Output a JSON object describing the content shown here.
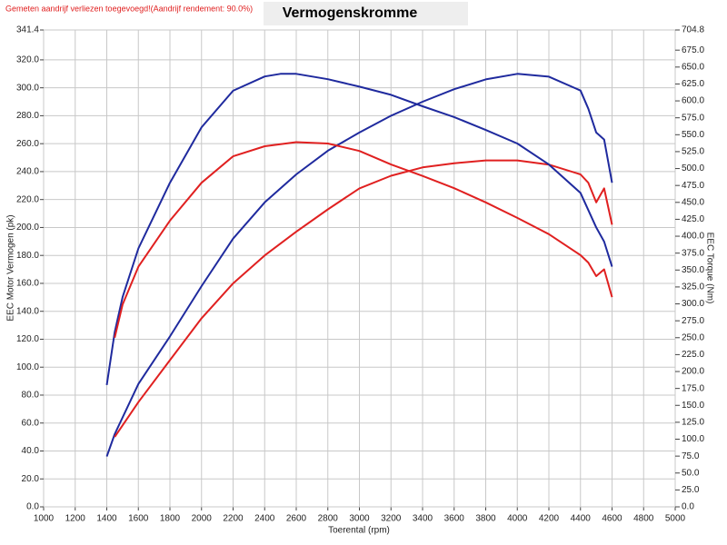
{
  "chart_data": {
    "type": "line",
    "title": "Vermogenskromme",
    "annotation": "Gemeten aandrijf verliezen toegevoegd!(Aandrijf rendement: 90.0%)",
    "xlabel": "Toerental (rpm)",
    "ylabel": "EEC Motor Vermogen (pk)",
    "y2label": "EEC Torque (Nm)",
    "grid": true,
    "xlim": [
      1000,
      5000
    ],
    "xticks": [
      1000,
      1200,
      1400,
      1600,
      1800,
      2000,
      2200,
      2400,
      2600,
      2800,
      3000,
      3200,
      3400,
      3600,
      3800,
      4000,
      4200,
      4400,
      4600,
      4800,
      5000
    ],
    "ylim": [
      0,
      341.4
    ],
    "yticks": [
      {
        "value": 0,
        "label": "0.0"
      },
      {
        "value": 20,
        "label": "20.0"
      },
      {
        "value": 40,
        "label": "40.0"
      },
      {
        "value": 60,
        "label": "60.0"
      },
      {
        "value": 80,
        "label": "80.0"
      },
      {
        "value": 100,
        "label": "100.0"
      },
      {
        "value": 120,
        "label": "120.0"
      },
      {
        "value": 140,
        "label": "140.0"
      },
      {
        "value": 160,
        "label": "160.0"
      },
      {
        "value": 180,
        "label": "180.0"
      },
      {
        "value": 200,
        "label": "200.0"
      },
      {
        "value": 220,
        "label": "220.0"
      },
      {
        "value": 240,
        "label": "240.0"
      },
      {
        "value": 260,
        "label": "260.0"
      },
      {
        "value": 280,
        "label": "280.0"
      },
      {
        "value": 300,
        "label": "300.0"
      },
      {
        "value": 320,
        "label": "320.0"
      },
      341.4
    ],
    "y2lim": [
      0,
      704.8
    ],
    "y2ticks": [
      {
        "value": 0,
        "label": "0.0"
      },
      {
        "value": 25,
        "label": "25.0"
      },
      {
        "value": 50,
        "label": "50.0"
      },
      {
        "value": 75,
        "label": "75.0"
      },
      {
        "value": 100,
        "label": "100.0"
      },
      {
        "value": 125,
        "label": "125.0"
      },
      {
        "value": 150,
        "label": "150.0"
      },
      {
        "value": 175,
        "label": "175.0"
      },
      {
        "value": 200,
        "label": "200.0"
      },
      {
        "value": 225,
        "label": "225.0"
      },
      {
        "value": 250,
        "label": "250.0"
      },
      {
        "value": 275,
        "label": "275.0"
      },
      {
        "value": 300,
        "label": "300.0"
      },
      {
        "value": 325,
        "label": "325.0"
      },
      {
        "value": 350,
        "label": "350.0"
      },
      {
        "value": 375,
        "label": "375.0"
      },
      {
        "value": 400,
        "label": "400.0"
      },
      {
        "value": 425,
        "label": "425.0"
      },
      {
        "value": 450,
        "label": "450.0"
      },
      {
        "value": 475,
        "label": "475.0"
      },
      {
        "value": 500,
        "label": "500.0"
      },
      {
        "value": 525,
        "label": "525.0"
      },
      {
        "value": 550,
        "label": "550.0"
      },
      {
        "value": 575,
        "label": "575.0"
      },
      {
        "value": 600,
        "label": "600.0"
      },
      {
        "value": 625,
        "label": "625.0"
      },
      {
        "value": 650,
        "label": "650.0"
      },
      {
        "value": 675,
        "label": "675.0"
      },
      704.8
    ],
    "series": [
      {
        "color": "#1f2a9e",
        "axis": "y",
        "x": [
          1400,
          1450,
          1600,
          1800,
          2000,
          2200,
          2400,
          2600,
          2800,
          3000,
          3200,
          3400,
          3600,
          3800,
          4000,
          4200,
          4400,
          4450,
          4500,
          4550,
          4600
        ],
        "values": [
          36,
          52,
          88,
          122,
          158,
          192,
          218,
          238,
          255,
          268,
          280,
          290,
          299,
          306,
          310,
          308,
          298,
          285,
          268,
          263,
          232
        ]
      },
      {
        "color": "#e02020",
        "axis": "y",
        "x": [
          1450,
          1600,
          1800,
          2000,
          2200,
          2400,
          2600,
          2800,
          3000,
          3200,
          3400,
          3600,
          3800,
          4000,
          4200,
          4400,
          4450,
          4500,
          4550,
          4600
        ],
        "values": [
          50,
          75,
          105,
          135,
          160,
          180,
          197,
          213,
          228,
          237,
          243,
          246,
          248,
          248,
          245,
          238,
          232,
          218,
          228,
          202
        ]
      },
      {
        "color": "#1f2a9e",
        "axis": "y2",
        "x": [
          1400,
          1450,
          1500,
          1600,
          1800,
          2000,
          2200,
          2400,
          2500,
          2600,
          2800,
          3000,
          3200,
          3400,
          3600,
          3800,
          4000,
          4200,
          4400,
          4500,
          4550,
          4600
        ],
        "values": [
          180,
          258,
          310,
          382,
          479,
          561,
          615,
          636,
          640,
          640,
          632,
          621,
          609,
          592,
          576,
          557,
          537,
          506,
          464,
          413,
          392,
          355
        ]
      },
      {
        "color": "#e02020",
        "axis": "y2",
        "x": [
          1450,
          1500,
          1600,
          1800,
          2000,
          2200,
          2400,
          2600,
          2800,
          3000,
          3200,
          3400,
          3600,
          3800,
          4000,
          4200,
          4400,
          4450,
          4500,
          4550,
          4600
        ],
        "values": [
          250,
          299,
          355,
          423,
          479,
          518,
          533,
          539,
          537,
          526,
          506,
          489,
          471,
          450,
          427,
          403,
          372,
          361,
          341,
          351,
          310
        ]
      }
    ]
  }
}
